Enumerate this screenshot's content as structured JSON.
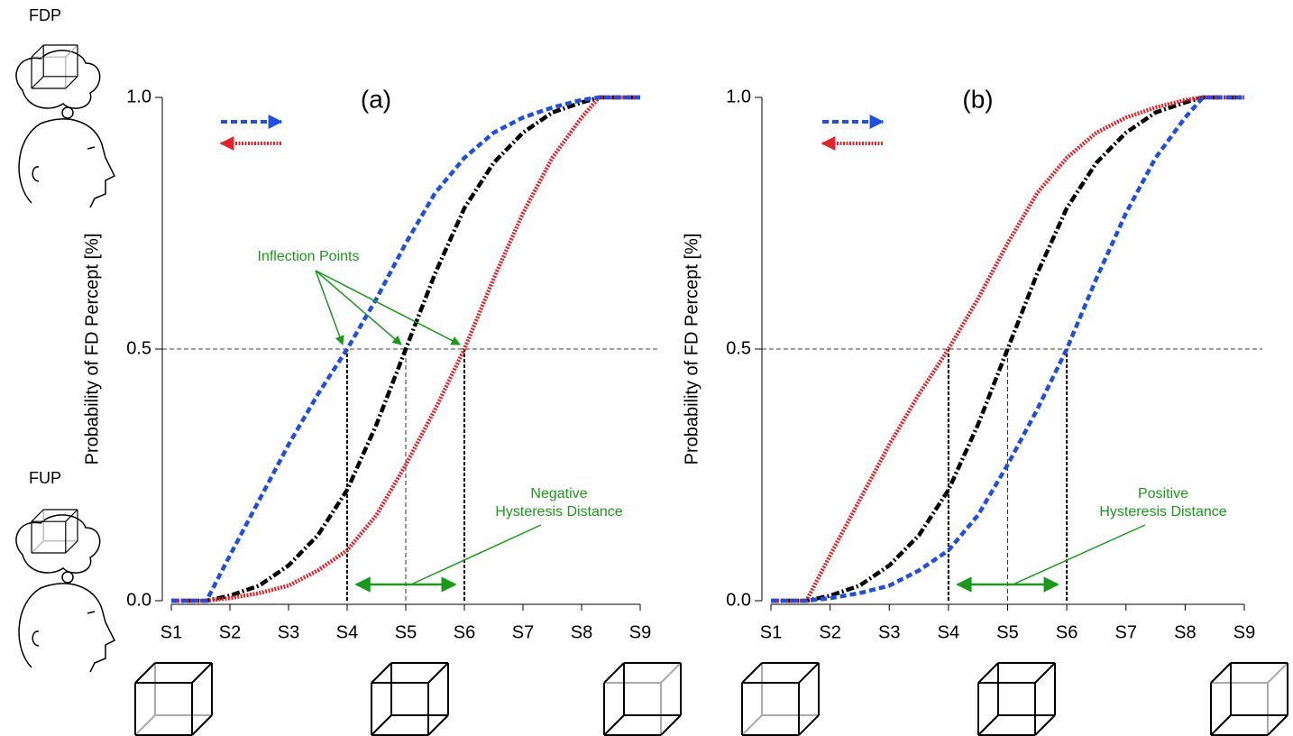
{
  "side_labels": [
    "FDP",
    "FUP"
  ],
  "chart_data": [
    {
      "type": "line",
      "title": "(a)",
      "ylabel": "Probability of FD Percept [%]",
      "x": [
        1,
        1.6,
        2,
        2.5,
        3,
        3.5,
        4,
        4.5,
        5,
        5.5,
        6,
        6.5,
        7,
        7.5,
        8,
        8.3,
        9
      ],
      "series": [
        {
          "color": "#1f4fe0",
          "style": "dashed",
          "values": [
            0,
            0,
            0.09,
            0.2,
            0.31,
            0.41,
            0.5,
            0.6,
            0.71,
            0.81,
            0.88,
            0.93,
            0.96,
            0.98,
            0.995,
            1,
            1
          ]
        },
        {
          "color": "#e0242a",
          "style": "dotted",
          "values": [
            0,
            0,
            0.005,
            0.015,
            0.03,
            0.06,
            0.1,
            0.17,
            0.27,
            0.38,
            0.5,
            0.64,
            0.77,
            0.88,
            0.96,
            1,
            1
          ]
        },
        {
          "color": "#000000",
          "style": "dashdot",
          "values": [
            0,
            0,
            0.01,
            0.03,
            0.07,
            0.13,
            0.22,
            0.35,
            0.5,
            0.65,
            0.78,
            0.87,
            0.93,
            0.97,
            0.99,
            1,
            1
          ]
        }
      ],
      "xlim": [
        1,
        9
      ],
      "xticks": [
        {
          "value": 1,
          "label": "S1"
        },
        {
          "value": 2,
          "label": "S2"
        },
        {
          "value": 3,
          "label": "S3"
        },
        {
          "value": 4,
          "label": "S4"
        },
        {
          "value": 5,
          "label": "S5"
        },
        {
          "value": 6,
          "label": "S6"
        },
        {
          "value": 7,
          "label": "S7"
        },
        {
          "value": 8,
          "label": "S8"
        },
        {
          "value": 9,
          "label": "S9"
        }
      ],
      "ylim": [
        0,
        1
      ],
      "yticks": [
        {
          "value": 0,
          "label": "0.0"
        },
        0.5,
        {
          "value": 1,
          "label": "1.0"
        }
      ],
      "threshold": 0.5,
      "inflection_points": [
        4,
        5,
        6
      ],
      "annotations": [
        "Inflection Points",
        "Negative",
        "Hysteresis Distance"
      ]
    },
    {
      "type": "line",
      "title": "(b)",
      "ylabel": "Probability of FD Percept [%]",
      "x": [
        1,
        1.6,
        2,
        2.5,
        3,
        3.5,
        4,
        4.5,
        5,
        5.5,
        6,
        6.5,
        7,
        7.5,
        8,
        8.3,
        9
      ],
      "series": [
        {
          "color": "#1f4fe0",
          "style": "dashed",
          "values": [
            0,
            0,
            0.005,
            0.015,
            0.03,
            0.06,
            0.1,
            0.17,
            0.27,
            0.38,
            0.5,
            0.64,
            0.77,
            0.88,
            0.96,
            1,
            1
          ]
        },
        {
          "color": "#e0242a",
          "style": "dotted",
          "values": [
            0,
            0,
            0.09,
            0.2,
            0.31,
            0.41,
            0.5,
            0.6,
            0.71,
            0.81,
            0.88,
            0.93,
            0.96,
            0.98,
            0.995,
            1,
            1
          ]
        },
        {
          "color": "#000000",
          "style": "dashdot",
          "values": [
            0,
            0,
            0.01,
            0.03,
            0.07,
            0.13,
            0.22,
            0.35,
            0.5,
            0.65,
            0.78,
            0.87,
            0.93,
            0.97,
            0.99,
            1,
            1
          ]
        }
      ],
      "xlim": [
        1,
        9
      ],
      "xticks": [
        {
          "value": 1,
          "label": "S1"
        },
        {
          "value": 2,
          "label": "S2"
        },
        {
          "value": 3,
          "label": "S3"
        },
        {
          "value": 4,
          "label": "S4"
        },
        {
          "value": 5,
          "label": "S5"
        },
        {
          "value": 6,
          "label": "S6"
        },
        {
          "value": 7,
          "label": "S7"
        },
        {
          "value": 8,
          "label": "S8"
        },
        {
          "value": 9,
          "label": "S9"
        }
      ],
      "ylim": [
        0,
        1
      ],
      "yticks": [
        {
          "value": 0,
          "label": "0.0"
        },
        0.5,
        {
          "value": 1,
          "label": "1.0"
        }
      ],
      "threshold": 0.5,
      "inflection_points": [
        4,
        5,
        6
      ],
      "annotations": [
        "Positive",
        "Hysteresis Distance"
      ]
    }
  ]
}
